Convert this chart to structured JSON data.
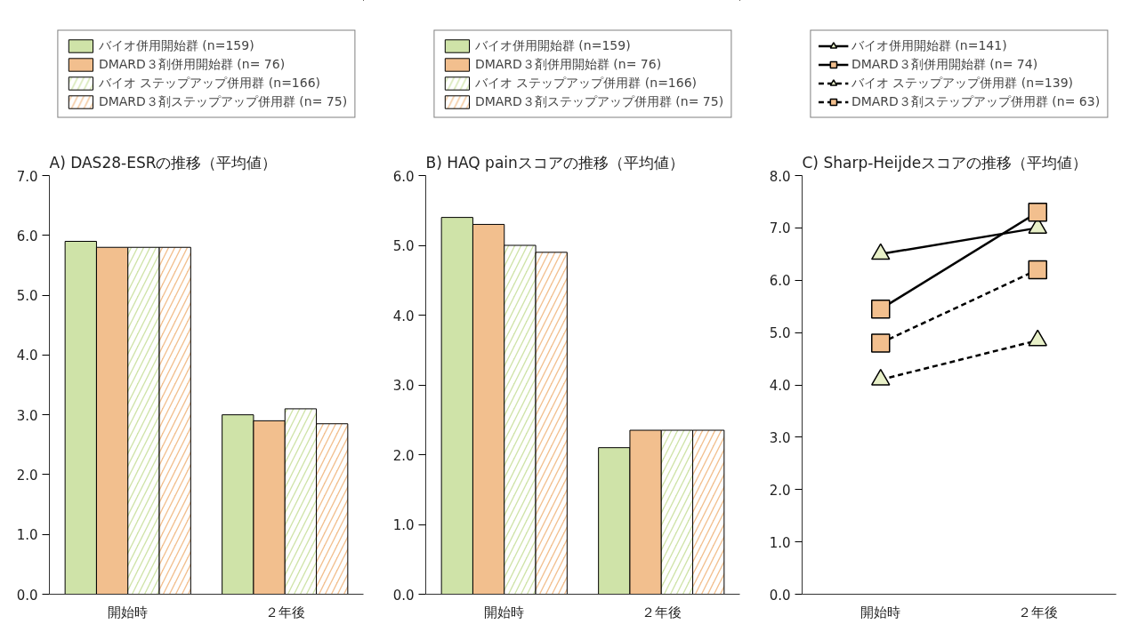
{
  "chart_data": [
    {
      "type": "bar",
      "title": "A) DAS28-ESRの推移（平均値）",
      "categories": [
        "開始時",
        "２年後"
      ],
      "ylim": [
        0,
        7
      ],
      "yticks": [
        {
          "value": 0,
          "label": "0.0"
        },
        {
          "value": 1,
          "label": "1.0"
        },
        {
          "value": 2,
          "label": "2.0"
        },
        {
          "value": 3,
          "label": "3.0"
        },
        {
          "value": 4,
          "label": "4.0"
        },
        {
          "value": 5,
          "label": "5.0"
        },
        {
          "value": 6,
          "label": "6.0"
        },
        {
          "value": 7,
          "label": "7.0"
        }
      ],
      "grid": false,
      "legend": "top",
      "series": [
        {
          "name": "バイオ併用開始群 (n=159)",
          "color": "#cfe3a8",
          "values": [
            5.9,
            3.0
          ]
        },
        {
          "name": "DMARD３剤併用開始群 (n= 76)",
          "color": "#f2bf8e",
          "values": [
            5.8,
            2.9
          ]
        },
        {
          "name": "バイオ ステップアップ併用群 (n=166)",
          "color": "#cfe3a8",
          "values": [
            5.8,
            3.1
          ]
        },
        {
          "name": "DMARD３剤ステップアップ併用群 (n= 75)",
          "color": "#f2bf8e",
          "values": [
            5.8,
            2.85
          ]
        }
      ]
    },
    {
      "type": "bar",
      "title": "B) HAQ painスコアの推移（平均値）",
      "categories": [
        "開始時",
        "２年後"
      ],
      "ylim": [
        0,
        6
      ],
      "yticks": [
        {
          "value": 0,
          "label": "0.0"
        },
        {
          "value": 1,
          "label": "1.0"
        },
        {
          "value": 2,
          "label": "2.0"
        },
        {
          "value": 3,
          "label": "3.0"
        },
        {
          "value": 4,
          "label": "4.0"
        },
        {
          "value": 5,
          "label": "5.0"
        },
        {
          "value": 6,
          "label": "6.0"
        }
      ],
      "grid": false,
      "legend": "top",
      "series": [
        {
          "name": "バイオ併用開始群 (n=159)",
          "color": "#cfe3a8",
          "values": [
            5.4,
            2.1
          ]
        },
        {
          "name": "DMARD３剤併用開始群 (n= 76)",
          "color": "#f2bf8e",
          "values": [
            5.3,
            2.35
          ]
        },
        {
          "name": "バイオ ステップアップ併用群 (n=166)",
          "color": "#cfe3a8",
          "values": [
            5.0,
            2.35
          ]
        },
        {
          "name": "DMARD３剤ステップアップ併用群 (n= 75)",
          "color": "#f2bf8e",
          "values": [
            4.9,
            2.35
          ]
        }
      ]
    },
    {
      "type": "line",
      "title": "C) Sharp-Heijdeスコアの推移（平均値）",
      "categories": [
        "開始時",
        "２年後"
      ],
      "ylim": [
        0,
        8
      ],
      "yticks": [
        {
          "value": 0,
          "label": "0.0"
        },
        {
          "value": 1,
          "label": "1.0"
        },
        {
          "value": 2,
          "label": "2.0"
        },
        {
          "value": 3,
          "label": "3.0"
        },
        {
          "value": 4,
          "label": "4.0"
        },
        {
          "value": 5,
          "label": "5.0"
        },
        {
          "value": 6,
          "label": "6.0"
        },
        {
          "value": 7,
          "label": "7.0"
        },
        {
          "value": 8,
          "label": "8.0"
        }
      ],
      "grid": false,
      "legend": "top",
      "series": [
        {
          "name": "バイオ併用開始群 (n=141)",
          "color": "#e8f0c8",
          "marker": "triangle",
          "line_style": "solid",
          "values": [
            6.5,
            7.0
          ]
        },
        {
          "name": "DMARD３剤併用開始群 (n= 74)",
          "color": "#f2bf8e",
          "marker": "square",
          "line_style": "solid",
          "values": [
            5.45,
            7.3
          ]
        },
        {
          "name": "バイオ ステップアップ併用群 (n=139)",
          "color": "#e8f0c8",
          "marker": "triangle",
          "line_style": "dashed",
          "values": [
            4.1,
            4.85
          ]
        },
        {
          "name": "DMARD３剤ステップアップ併用群 (n= 63)",
          "color": "#f2bf8e",
          "marker": "square",
          "line_style": "dashed",
          "values": [
            4.8,
            6.2
          ]
        }
      ]
    }
  ]
}
